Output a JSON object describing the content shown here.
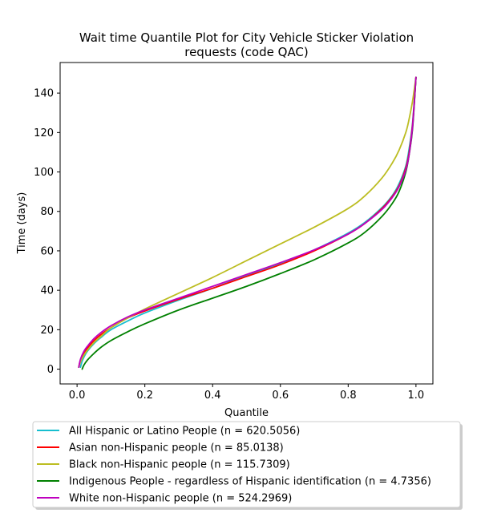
{
  "chart_data": {
    "type": "line",
    "title": [
      "Wait time Quantile Plot for City Vehicle Sticker Violation",
      "requests (code QAC)"
    ],
    "xlabel": "Quantile",
    "ylabel": "Time (days)",
    "xlim": [
      -0.05,
      1.05
    ],
    "ylim": [
      -7.5,
      155.5
    ],
    "xticks": [
      0.0,
      0.2,
      0.4,
      0.6,
      0.8,
      1.0
    ],
    "xtick_labels": [
      "0.0",
      "0.2",
      "0.4",
      "0.6",
      "0.8",
      "1.0"
    ],
    "yticks": [
      0,
      20,
      40,
      60,
      80,
      100,
      120,
      140
    ],
    "ytick_labels": [
      "0",
      "20",
      "40",
      "60",
      "80",
      "100",
      "120",
      "140"
    ],
    "grid": false,
    "legend_position": "below",
    "series": [
      {
        "name": "All Hispanic or Latino People (n = 620.5056)",
        "color": "#17becf",
        "x": [
          0.01,
          0.015,
          0.02,
          0.03,
          0.05,
          0.07,
          0.1,
          0.15,
          0.2,
          0.3,
          0.4,
          0.5,
          0.6,
          0.7,
          0.8,
          0.85,
          0.9,
          0.93,
          0.95,
          0.97,
          0.98,
          0.99,
          1.0
        ],
        "y": [
          1,
          4,
          6,
          9,
          13,
          16,
          20,
          24.5,
          28.5,
          35,
          41,
          47.5,
          53.5,
          60.5,
          69,
          74.5,
          82,
          88,
          94,
          103,
          112,
          125,
          148
        ]
      },
      {
        "name": "Asian non-Hispanic people (n = 85.0138)",
        "color": "#ff0000",
        "x": [
          0.005,
          0.01,
          0.02,
          0.03,
          0.05,
          0.07,
          0.1,
          0.15,
          0.2,
          0.3,
          0.4,
          0.5,
          0.6,
          0.7,
          0.8,
          0.85,
          0.9,
          0.93,
          0.95,
          0.97,
          0.98,
          0.99,
          1.0
        ],
        "y": [
          1,
          4.5,
          8,
          10.5,
          14.5,
          17.5,
          21,
          26,
          29.5,
          35.5,
          41,
          47,
          53,
          60,
          68.5,
          74,
          81.5,
          87.5,
          93,
          102,
          110,
          124,
          148
        ]
      },
      {
        "name": "Black non-Hispanic people (n = 115.7309)",
        "color": "#bcbd22",
        "x": [
          0.005,
          0.01,
          0.02,
          0.03,
          0.05,
          0.07,
          0.1,
          0.15,
          0.2,
          0.3,
          0.4,
          0.5,
          0.6,
          0.7,
          0.8,
          0.85,
          0.9,
          0.93,
          0.95,
          0.97,
          0.98,
          0.99,
          1.0
        ],
        "y": [
          1,
          3.5,
          7,
          9.5,
          13.5,
          16.5,
          21,
          26,
          30.5,
          38.5,
          46.5,
          55,
          63.5,
          72,
          81.5,
          88,
          97,
          104.5,
          111,
          120,
          127,
          136,
          148
        ]
      },
      {
        "name": "Indigenous People - regardless of Hispanic identification (n = 4.7356)",
        "color": "#008000",
        "x": [
          0.015,
          0.02,
          0.03,
          0.05,
          0.07,
          0.1,
          0.15,
          0.2,
          0.3,
          0.4,
          0.5,
          0.6,
          0.7,
          0.8,
          0.85,
          0.9,
          0.93,
          0.95,
          0.97,
          0.98,
          0.99,
          1.0
        ],
        "y": [
          0,
          2,
          4.5,
          8,
          11,
          14.5,
          19,
          23,
          30,
          36,
          42,
          48.5,
          55.5,
          64,
          69.5,
          77.5,
          84,
          90,
          100,
          109,
          122,
          148
        ]
      },
      {
        "name": "White non-Hispanic people (n = 524.2969)",
        "color": "#bf00bf",
        "x": [
          0.005,
          0.01,
          0.02,
          0.03,
          0.05,
          0.07,
          0.1,
          0.15,
          0.2,
          0.3,
          0.4,
          0.5,
          0.6,
          0.7,
          0.8,
          0.85,
          0.9,
          0.93,
          0.95,
          0.97,
          0.98,
          0.99,
          1.0
        ],
        "y": [
          1,
          5,
          9,
          11.5,
          15.5,
          18.5,
          22,
          26.5,
          30,
          36,
          42,
          48,
          54,
          60.5,
          68.5,
          74,
          81,
          87,
          92.5,
          101,
          109,
          123,
          148
        ]
      }
    ]
  }
}
